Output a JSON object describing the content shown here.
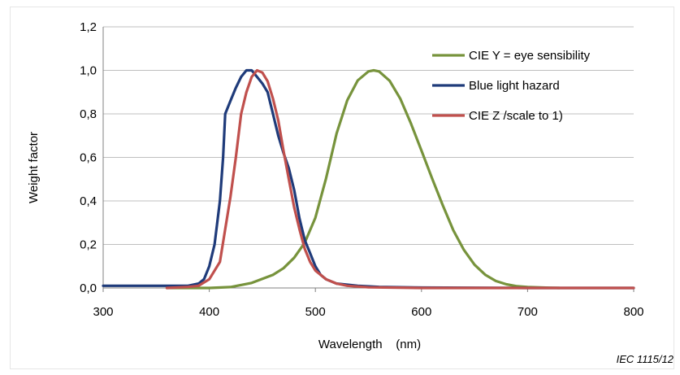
{
  "chart_data": {
    "type": "line",
    "title": "",
    "xlabel": "Wavelength    (nm)",
    "ylabel": "Weight factor",
    "xlim": [
      300,
      800
    ],
    "ylim": [
      0,
      1.2
    ],
    "x_ticks": [
      "300",
      "400",
      "500",
      "600",
      "700",
      "800"
    ],
    "y_ticks": [
      "0,0",
      "0,2",
      "0,4",
      "0,6",
      "0,8",
      "1,0",
      "1,2"
    ],
    "grid": "horizontal",
    "legend_position": "top-right",
    "series": [
      {
        "name": "CIE Y = eye sensibility",
        "color": "#77933c",
        "points": [
          [
            360,
            0.0
          ],
          [
            380,
            0.0
          ],
          [
            400,
            0.0
          ],
          [
            420,
            0.004
          ],
          [
            440,
            0.023
          ],
          [
            460,
            0.06
          ],
          [
            470,
            0.091
          ],
          [
            480,
            0.139
          ],
          [
            490,
            0.208
          ],
          [
            500,
            0.323
          ],
          [
            510,
            0.503
          ],
          [
            520,
            0.71
          ],
          [
            530,
            0.862
          ],
          [
            540,
            0.954
          ],
          [
            550,
            0.995
          ],
          [
            555,
            1.0
          ],
          [
            560,
            0.995
          ],
          [
            570,
            0.952
          ],
          [
            580,
            0.87
          ],
          [
            590,
            0.757
          ],
          [
            600,
            0.631
          ],
          [
            610,
            0.503
          ],
          [
            620,
            0.381
          ],
          [
            630,
            0.265
          ],
          [
            640,
            0.175
          ],
          [
            650,
            0.107
          ],
          [
            660,
            0.061
          ],
          [
            670,
            0.032
          ],
          [
            680,
            0.017
          ],
          [
            690,
            0.008
          ],
          [
            700,
            0.004
          ],
          [
            720,
            0.001
          ],
          [
            730,
            0.0
          ]
        ]
      },
      {
        "name": "Blue light hazard",
        "color": "#1f3b7a",
        "points": [
          [
            300,
            0.01
          ],
          [
            320,
            0.01
          ],
          [
            340,
            0.01
          ],
          [
            360,
            0.01
          ],
          [
            380,
            0.01
          ],
          [
            390,
            0.02
          ],
          [
            395,
            0.04
          ],
          [
            400,
            0.1
          ],
          [
            405,
            0.2
          ],
          [
            410,
            0.4
          ],
          [
            413,
            0.6
          ],
          [
            415,
            0.8
          ],
          [
            420,
            0.86
          ],
          [
            425,
            0.92
          ],
          [
            430,
            0.97
          ],
          [
            435,
            1.0
          ],
          [
            440,
            1.0
          ],
          [
            445,
            0.97
          ],
          [
            450,
            0.94
          ],
          [
            455,
            0.9
          ],
          [
            460,
            0.8
          ],
          [
            465,
            0.7
          ],
          [
            470,
            0.62
          ],
          [
            475,
            0.55
          ],
          [
            480,
            0.45
          ],
          [
            485,
            0.32
          ],
          [
            490,
            0.22
          ],
          [
            495,
            0.16
          ],
          [
            500,
            0.1
          ],
          [
            505,
            0.06
          ],
          [
            510,
            0.04
          ],
          [
            520,
            0.02
          ],
          [
            540,
            0.01
          ],
          [
            560,
            0.005
          ],
          [
            600,
            0.002
          ],
          [
            700,
            0.0
          ],
          [
            800,
            0.0
          ]
        ]
      },
      {
        "name": "CIE Z /scale to 1)",
        "color": "#c0504d",
        "points": [
          [
            360,
            0.0
          ],
          [
            380,
            0.005
          ],
          [
            390,
            0.01
          ],
          [
            400,
            0.04
          ],
          [
            410,
            0.12
          ],
          [
            420,
            0.42
          ],
          [
            425,
            0.6
          ],
          [
            430,
            0.8
          ],
          [
            435,
            0.9
          ],
          [
            440,
            0.97
          ],
          [
            445,
            1.0
          ],
          [
            450,
            0.99
          ],
          [
            455,
            0.95
          ],
          [
            460,
            0.87
          ],
          [
            465,
            0.77
          ],
          [
            470,
            0.63
          ],
          [
            475,
            0.5
          ],
          [
            480,
            0.37
          ],
          [
            485,
            0.27
          ],
          [
            490,
            0.18
          ],
          [
            495,
            0.12
          ],
          [
            500,
            0.08
          ],
          [
            510,
            0.04
          ],
          [
            520,
            0.02
          ],
          [
            530,
            0.01
          ],
          [
            550,
            0.003
          ],
          [
            600,
            0.0
          ],
          [
            700,
            0.0
          ],
          [
            800,
            0.0
          ]
        ]
      }
    ]
  },
  "footer": "IEC   1115/12"
}
